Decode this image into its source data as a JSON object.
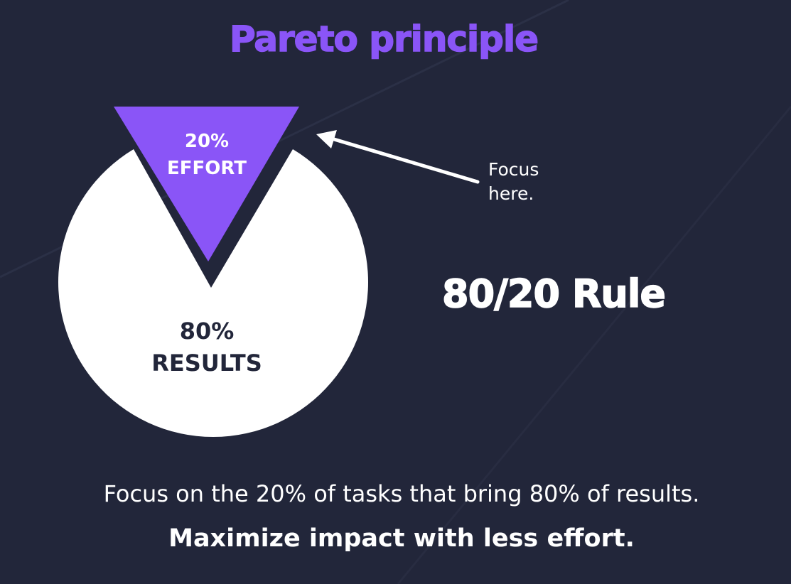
{
  "title": "Pareto principle",
  "diagram": {
    "effort_percent": "20%",
    "effort_label": "EFFORT",
    "results_percent": "80%",
    "results_label": "RESULTS",
    "focus_line1": "Focus",
    "focus_line2": "here."
  },
  "rule_label": "80/20 Rule",
  "caption": "Focus on the 20% of tasks that bring 80% of results.",
  "tagline": "Maximize impact with less effort.",
  "colors": {
    "background": "#22263a",
    "accent": "#8a55f7",
    "pie": "#ffffff",
    "text_dark": "#22263a",
    "text_light": "#ffffff"
  }
}
